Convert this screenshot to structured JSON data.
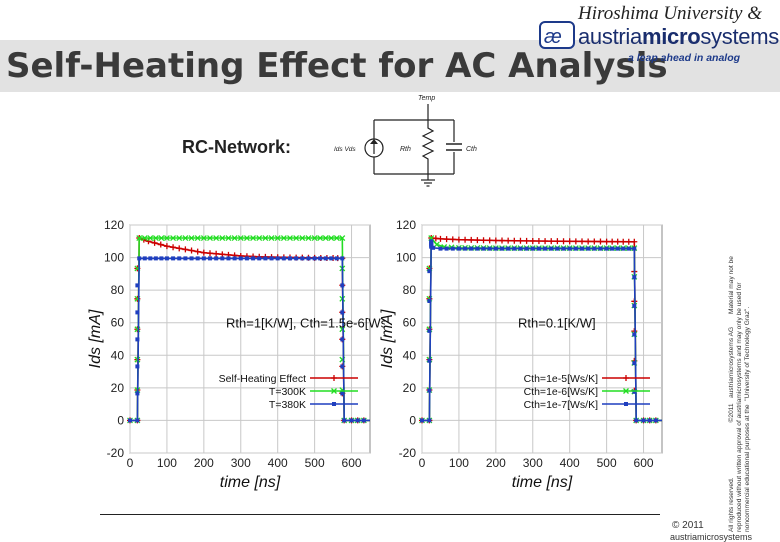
{
  "header": {
    "title": "Self-Heating Effect for AC Analysis",
    "university": "Hiroshima University &",
    "brand_a": "austria",
    "brand_b": "micro",
    "brand_c": "systems",
    "tagline": "a leap ahead in analog"
  },
  "rc_network": {
    "label": "RC-Network:",
    "node": "Temp",
    "source": "Ids Vds",
    "resistor": "Rth",
    "capacitor": "Cth"
  },
  "footer": {
    "copyright": "© 2011",
    "company": "austriamicrosystems",
    "rights_lines": [
      "All rights reserved.                              ©2011   austriamicrosystems AG       Material may not be",
      "reproduced without written approval of austriamicrosystems and may only be used for",
      "noncommercial educational purposes at the  \"University of Technology Graz\"."
    ]
  },
  "colors": {
    "red": "#cc0000",
    "green": "#22dd22",
    "blue": "#1f3fbf",
    "grid": "#c8c8c8"
  },
  "chart_data": [
    {
      "type": "line",
      "xlabel": "time [ns]",
      "ylabel": "Ids [mA]",
      "xlim": [
        0,
        650
      ],
      "ylim": [
        -20,
        120
      ],
      "xticks": [
        0,
        100,
        200,
        300,
        400,
        500,
        600
      ],
      "yticks": [
        -20,
        0,
        20,
        40,
        60,
        80,
        100,
        120
      ],
      "annotation": "Rth=1[K/W], Cth=1.5e-6[Ws/K]",
      "legend_position": "bottom-right",
      "series": [
        {
          "name": "Self-Heating Effect",
          "color": "#cc0000",
          "marker": "plus",
          "x": [
            0,
            20,
            25,
            50,
            100,
            150,
            200,
            250,
            300,
            350,
            400,
            450,
            500,
            550,
            575,
            580,
            600,
            650
          ],
          "y": [
            0,
            0,
            112,
            110,
            107,
            105,
            103,
            102,
            101,
            100.5,
            100.2,
            100,
            99.8,
            99.7,
            99.6,
            0,
            0,
            0
          ]
        },
        {
          "name": "T=300K",
          "color": "#22dd22",
          "marker": "x",
          "x": [
            0,
            20,
            25,
            100,
            200,
            300,
            400,
            500,
            575,
            580,
            600,
            650
          ],
          "y": [
            0,
            0,
            112,
            112,
            112,
            112,
            112,
            112,
            112,
            0,
            0,
            0
          ]
        },
        {
          "name": "T=380K",
          "color": "#1f3fbf",
          "marker": "star",
          "x": [
            0,
            20,
            25,
            100,
            200,
            300,
            400,
            500,
            575,
            580,
            600,
            650
          ],
          "y": [
            0,
            0,
            99.5,
            99.5,
            99.5,
            99.5,
            99.5,
            99.5,
            99.5,
            0,
            0,
            0
          ]
        }
      ]
    },
    {
      "type": "line",
      "xlabel": "time [ns]",
      "ylabel": "Ids [mA]",
      "xlim": [
        0,
        650
      ],
      "ylim": [
        -20,
        120
      ],
      "xticks": [
        0,
        100,
        200,
        300,
        400,
        500,
        600
      ],
      "yticks": [
        -20,
        0,
        20,
        40,
        60,
        80,
        100,
        120
      ],
      "annotation": "Rth=0.1[K/W]",
      "legend_position": "bottom-right",
      "series": [
        {
          "name": "Cth=1e-5[Ws/K]",
          "color": "#cc0000",
          "marker": "plus",
          "x": [
            0,
            20,
            25,
            50,
            100,
            200,
            300,
            400,
            500,
            575,
            580,
            600,
            650
          ],
          "y": [
            0,
            0,
            112,
            111.5,
            111,
            110.5,
            110.2,
            110,
            109.8,
            109.7,
            0,
            0,
            0
          ]
        },
        {
          "name": "Cth=1e-6[Ws/K]",
          "color": "#22dd22",
          "marker": "x",
          "x": [
            0,
            20,
            25,
            40,
            60,
            100,
            200,
            300,
            400,
            500,
            575,
            580,
            600,
            650
          ],
          "y": [
            0,
            0,
            112,
            108,
            106.5,
            106,
            105.8,
            105.8,
            105.8,
            105.8,
            105.8,
            0,
            0,
            0
          ]
        },
        {
          "name": "Cth=1e-7[Ws/K]",
          "color": "#1f3fbf",
          "marker": "star",
          "x": [
            0,
            20,
            25,
            30,
            50,
            100,
            200,
            300,
            400,
            500,
            575,
            580,
            600,
            650
          ],
          "y": [
            0,
            0,
            110,
            106,
            105.5,
            105.5,
            105.5,
            105.5,
            105.5,
            105.5,
            105.5,
            0,
            0,
            0
          ]
        }
      ]
    }
  ]
}
